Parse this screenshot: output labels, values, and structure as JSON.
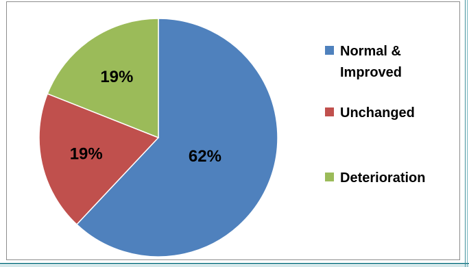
{
  "chart_data": {
    "type": "pie",
    "title": "",
    "categories": [
      "Normal & Improved",
      "Unchanged",
      "Deterioration"
    ],
    "values": [
      62,
      19,
      19
    ],
    "data_labels": [
      "62%",
      "19%",
      "19%"
    ],
    "colors": [
      "#4f81bd",
      "#c0504d",
      "#9bbb59"
    ],
    "legend": {
      "position": "right",
      "entries": [
        {
          "label_lines": [
            "Normal &",
            "Improved"
          ],
          "color": "#4f81bd"
        },
        {
          "label_lines": [
            "Unchanged"
          ],
          "color": "#c0504d"
        },
        {
          "label_lines": [
            "Deterioration"
          ],
          "color": "#9bbb59"
        }
      ]
    }
  }
}
